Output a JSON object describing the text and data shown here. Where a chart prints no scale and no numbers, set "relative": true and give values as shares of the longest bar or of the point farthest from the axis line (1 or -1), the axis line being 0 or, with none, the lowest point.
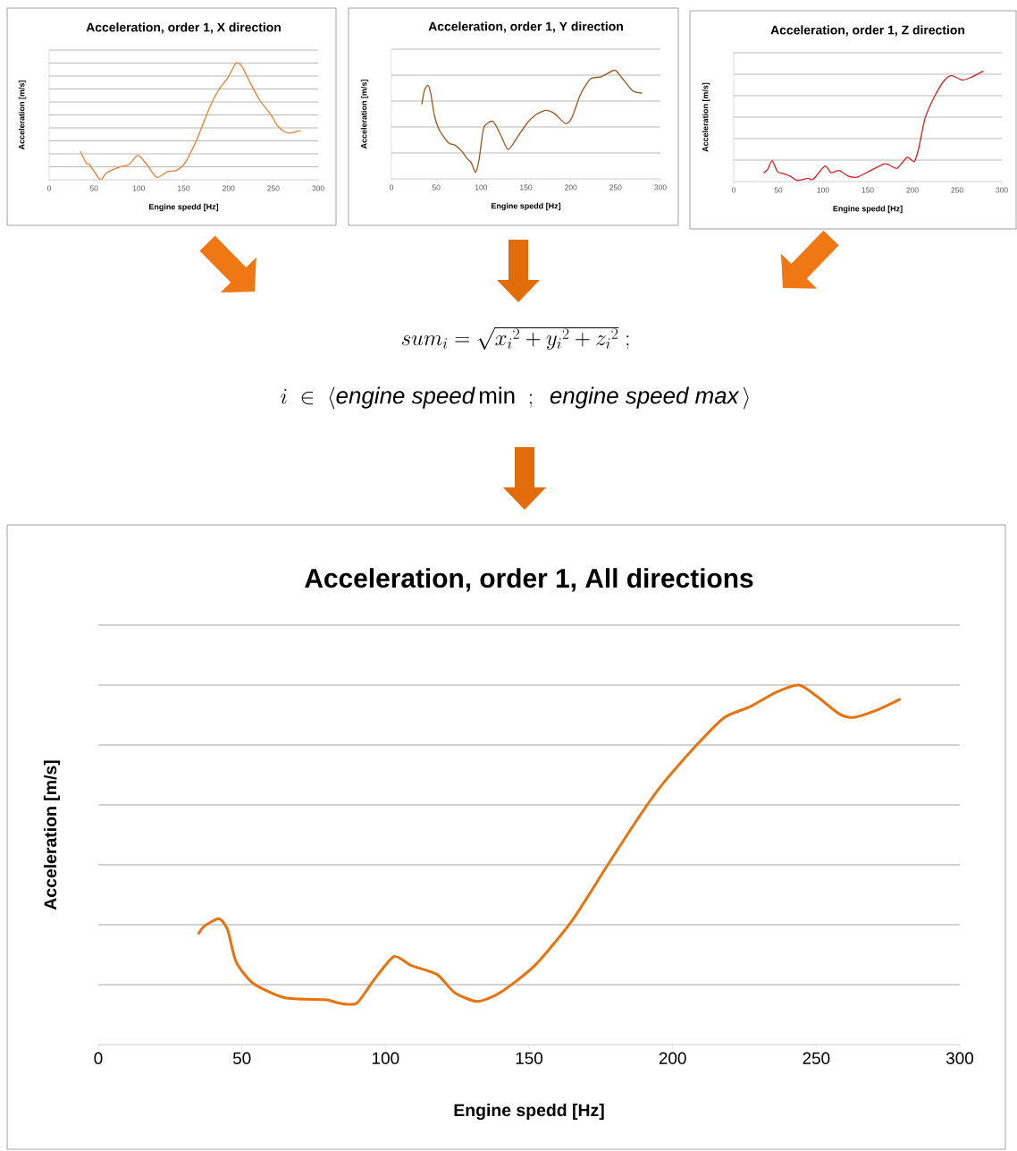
{
  "chart_data": [
    {
      "type": "line",
      "title": "Acceleration, order 1, X direction",
      "xlabel": "Engine spedd [Hz]",
      "ylabel": "Acceleration [m/s]",
      "relative": true,
      "color": "#ed7d31",
      "grid": "y",
      "xlim": [
        0,
        300
      ],
      "xticks": [
        0,
        50,
        100,
        150,
        200,
        250,
        300
      ],
      "x": [
        35,
        41.6,
        45,
        57,
        64,
        79,
        89,
        99,
        109,
        120,
        132,
        142,
        152,
        165,
        179,
        189,
        199,
        208.5,
        215,
        225,
        235,
        247,
        255,
        263,
        268,
        280
      ],
      "values": [
        0.24,
        0.14,
        0.13,
        0.0,
        0.06,
        0.11,
        0.13,
        0.21,
        0.13,
        0.02,
        0.07,
        0.08,
        0.15,
        0.35,
        0.62,
        0.77,
        0.87,
        1.0,
        0.97,
        0.82,
        0.68,
        0.56,
        0.46,
        0.41,
        0.4,
        0.42
      ]
    },
    {
      "type": "line",
      "title": "Acceleration, order 1, Y direction",
      "xlabel": "Engine spedd [Hz]",
      "ylabel": "Acceleration [m/s]",
      "relative": true,
      "color": "#9c561e",
      "grid": "y",
      "xlim": [
        0,
        300
      ],
      "xticks": [
        0,
        50,
        100,
        150,
        200,
        250,
        300
      ],
      "x": [
        34,
        37,
        41,
        44,
        48,
        54,
        64,
        71,
        79,
        84,
        89,
        94,
        98,
        103,
        113,
        121,
        130,
        141,
        151,
        161,
        172,
        182,
        194,
        201,
        211,
        222,
        234,
        249,
        257,
        269,
        279
      ],
      "values": [
        0.69,
        0.82,
        0.86,
        0.78,
        0.58,
        0.44,
        0.33,
        0.31,
        0.25,
        0.19,
        0.15,
        0.06,
        0.19,
        0.47,
        0.53,
        0.42,
        0.27,
        0.39,
        0.51,
        0.59,
        0.63,
        0.6,
        0.51,
        0.56,
        0.78,
        0.92,
        0.94,
        1.0,
        0.93,
        0.81,
        0.79
      ]
    },
    {
      "type": "line",
      "title": "Acceleration, order 1, Z direction",
      "xlabel": "Engine spedd [Hz]",
      "ylabel": "Acceleration [m/s]",
      "relative": true,
      "color": "#d42020",
      "grid": "y",
      "xlim": [
        0,
        300
      ],
      "xticks": [
        0,
        50,
        100,
        150,
        200,
        250,
        300
      ],
      "x": [
        34,
        38,
        43,
        49,
        56,
        63,
        71,
        83,
        89,
        102,
        109,
        118,
        128,
        138,
        151,
        168,
        174,
        183,
        194,
        202,
        207,
        214,
        224,
        236,
        244,
        256,
        267,
        279
      ],
      "values": [
        0.08,
        0.11,
        0.19,
        0.09,
        0.07,
        0.05,
        0.01,
        0.03,
        0.02,
        0.14,
        0.08,
        0.1,
        0.05,
        0.04,
        0.09,
        0.16,
        0.15,
        0.12,
        0.22,
        0.18,
        0.3,
        0.57,
        0.76,
        0.92,
        0.96,
        0.92,
        0.95,
        1.0
      ]
    },
    {
      "type": "line",
      "title": "Acceleration, order 1, All directions",
      "xlabel": "Engine spedd [Hz]",
      "ylabel": "Acceleration [m/s]",
      "relative": true,
      "color": "#e8720c",
      "grid": "y",
      "xlim": [
        0,
        300
      ],
      "xticks": [
        0,
        50,
        100,
        150,
        200,
        250,
        300
      ],
      "annotations": [
        "sum_i = \\sqrt{{x_i}^2 + {y_i}^2 + {z_i}^2}\\;;",
        "i \\;\\in\\; \\langle \\mathit{engine\\ speed}\\,\\mathrm{min}\\;\\;;\\;\\; \\mathit{engine\\ speed\\ max}\\,\\rangle"
      ],
      "x": [
        35,
        37,
        42,
        45,
        48,
        54,
        65,
        79,
        84,
        90,
        96,
        103,
        109,
        118,
        124,
        132,
        140,
        152,
        165,
        177,
        188,
        196,
        208,
        218,
        227,
        236,
        244,
        250,
        258,
        263,
        271,
        279
      ],
      "values": [
        0.31,
        0.33,
        0.35,
        0.32,
        0.23,
        0.17,
        0.13,
        0.125,
        0.115,
        0.115,
        0.18,
        0.245,
        0.22,
        0.195,
        0.145,
        0.12,
        0.145,
        0.22,
        0.345,
        0.495,
        0.63,
        0.72,
        0.83,
        0.91,
        0.94,
        0.98,
        1.0,
        0.97,
        0.92,
        0.91,
        0.93,
        0.96
      ]
    }
  ]
}
